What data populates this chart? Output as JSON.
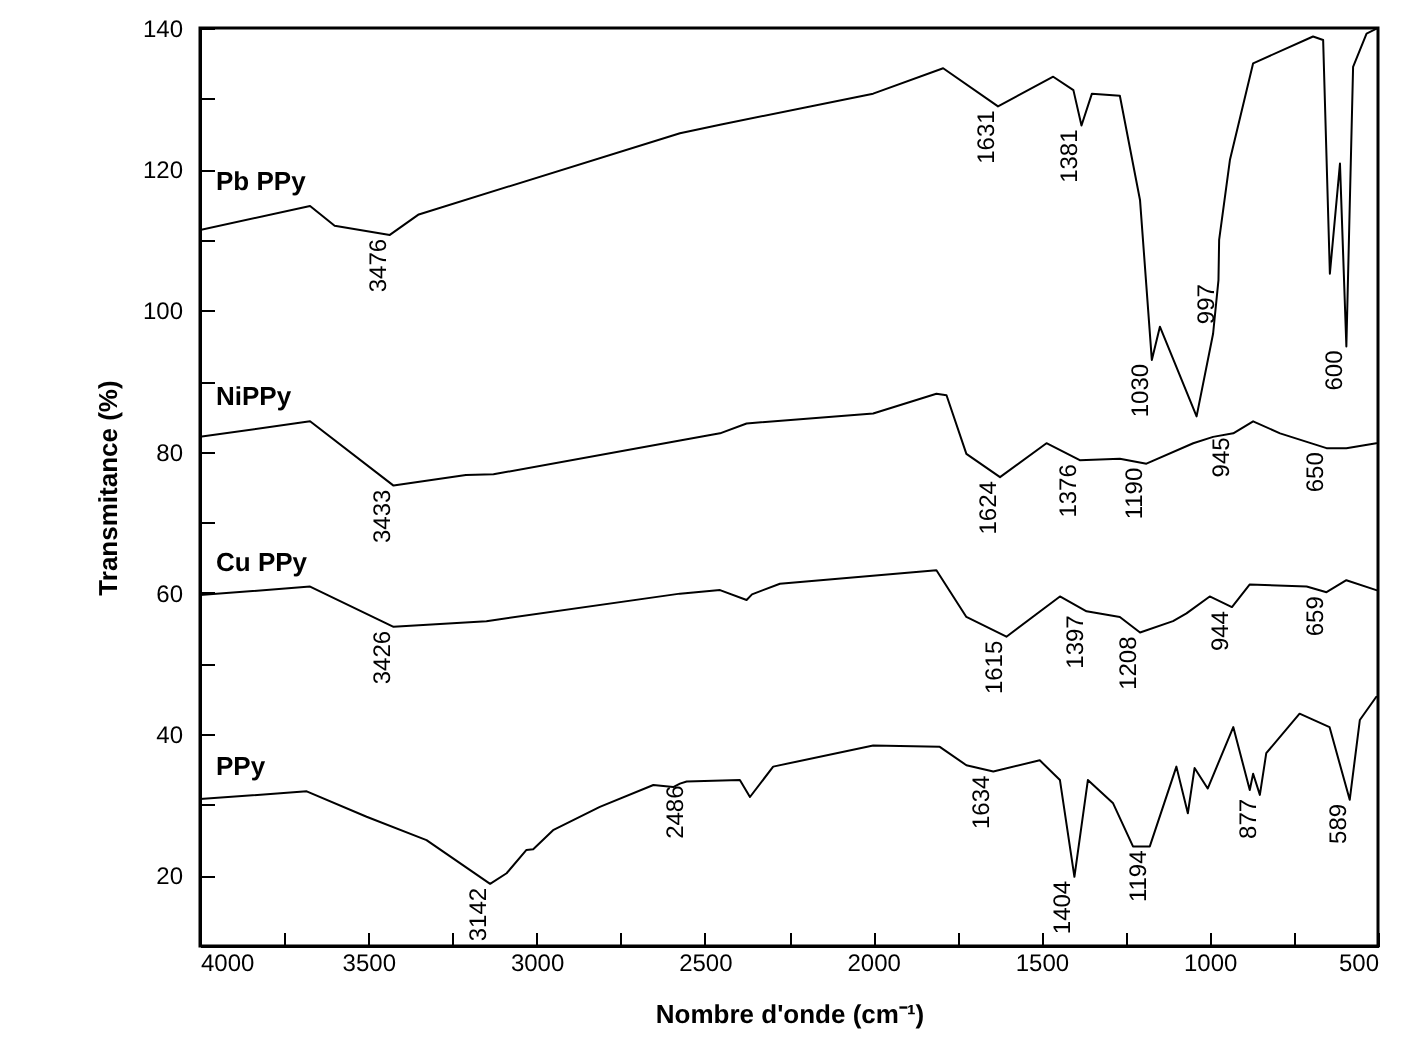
{
  "chart_data": {
    "type": "line",
    "xlabel": "Nombre d'onde (cm⁻¹)",
    "ylabel": "Transmitance (%)",
    "xlim": [
      4000,
      500
    ],
    "ylim": [
      10,
      140
    ],
    "xticks": [
      4000,
      {
        "value": 3750,
        "label": null
      },
      3500,
      {
        "value": 3250,
        "label": null
      },
      3000,
      {
        "value": 2750,
        "label": null
      },
      2500,
      {
        "value": 2250,
        "label": null
      },
      2000,
      {
        "value": 1750,
        "label": null
      },
      1500,
      {
        "value": 1250,
        "label": null
      },
      1000,
      {
        "value": 750,
        "label": null
      },
      500
    ],
    "yticks": [
      {
        "value": 10,
        "label": null
      },
      20,
      {
        "value": 30,
        "label": null
      },
      40,
      {
        "value": 50,
        "label": null
      },
      60,
      {
        "value": 70,
        "label": null
      },
      80,
      {
        "value": 90,
        "label": null
      },
      100,
      {
        "value": 110,
        "label": null
      },
      120,
      {
        "value": 130,
        "label": null
      },
      140
    ],
    "series": [
      {
        "name": "Pb PPy",
        "color": "#000000",
        "x": [
          4000,
          3673,
          3600,
          3436,
          3350,
          2574,
          2455,
          2000,
          1792,
          1629,
          1465,
          1405,
          1381,
          1350,
          1267,
          1207,
          1172,
          1148,
          1039,
          990,
          974,
          972,
          940,
          871,
          693,
          663,
          643,
          613,
          594,
          574,
          534,
          500
        ],
        "values": [
          111.4,
          114.8,
          112,
          110.7,
          113.6,
          125.1,
          126.3,
          130.7,
          134.3,
          128.9,
          133.1,
          131.2,
          126.2,
          130.7,
          130.4,
          115.6,
          93.0,
          97.7,
          85.0,
          96.7,
          104.3,
          110,
          121.3,
          135,
          138.8,
          138.3,
          105.2,
          120.8,
          94.9,
          134.5,
          139.2,
          140
        ]
      },
      {
        "name": "NiPPy",
        "color": "#000000",
        "x": [
          4000,
          3673,
          3425,
          3210,
          3128,
          2574,
          2455,
          2376,
          2000,
          1812,
          1782,
          1723,
          1623,
          1485,
          1386,
          1267,
          1188,
          1049,
          990,
          930,
          871,
          791,
          653,
          594,
          505
        ],
        "values": [
          82.1,
          84.3,
          75.2,
          76.7,
          76.8,
          81.6,
          82.6,
          84.0,
          85.4,
          88.2,
          88,
          79.7,
          76.4,
          81.2,
          78.8,
          79.0,
          78.3,
          81.2,
          82.1,
          82.6,
          84.3,
          82.6,
          80.5,
          80.5,
          81.2
        ]
      },
      {
        "name": "Cu PPy",
        "color": "#000000",
        "x": [
          4000,
          3673,
          3425,
          3149,
          2574,
          2455,
          2376,
          2360,
          2277,
          1812,
          1723,
          1604,
          1445,
          1366,
          1267,
          1207,
          1109,
          1069,
          1000,
          934,
          881,
          712,
          653,
          594,
          505
        ],
        "values": [
          59.7,
          60.9,
          55.2,
          56.0,
          59.9,
          60.4,
          59.0,
          59.8,
          61.3,
          63.2,
          56.6,
          53.8,
          59.5,
          57.4,
          56.6,
          54.4,
          56.0,
          57.1,
          59.5,
          58.0,
          61.2,
          60.9,
          60.1,
          61.8,
          60.4
        ]
      },
      {
        "name": "PPy",
        "color": "#000000",
        "x": [
          4000,
          3683,
          3505,
          3327,
          3138,
          3089,
          3030,
          3010,
          2951,
          2812,
          2653,
          2594,
          2574,
          2554,
          2396,
          2366,
          2297,
          2000,
          1802,
          1723,
          1643,
          1505,
          1445,
          1402,
          1362,
          1287,
          1228,
          1178,
          1099,
          1065,
          1045,
          1006,
          930,
          881,
          871,
          851,
          832,
          733,
          644,
          584,
          554,
          505
        ],
        "values": [
          30.8,
          31.9,
          28.3,
          25.0,
          18.8,
          20.3,
          23.6,
          23.7,
          26.4,
          29.7,
          32.8,
          32.5,
          33.0,
          33.3,
          33.5,
          31.1,
          35.4,
          38.4,
          38.2,
          35.6,
          34.7,
          36.3,
          33.5,
          19.8,
          33.5,
          30.2,
          24.1,
          24.1,
          35.4,
          28.8,
          35.2,
          32.3,
          41.0,
          32.1,
          34.4,
          31.4,
          37.3,
          42.9,
          41.0,
          30.7,
          42.0,
          45.3
        ]
      }
    ],
    "annotations": [
      {
        "text": "3476",
        "x": 3436,
        "y": 110.7
      },
      {
        "text": "1631",
        "x": 1629,
        "y": 128.9
      },
      {
        "text": "1381",
        "x": 1381,
        "y": 126.2
      },
      {
        "text": "1030",
        "x": 1172,
        "y": 93.0
      },
      {
        "text": "997",
        "x": 974,
        "y": 104.3
      },
      {
        "text": "600",
        "x": 594,
        "y": 94.9
      },
      {
        "text": "3433",
        "x": 3425,
        "y": 75.2
      },
      {
        "text": "1624",
        "x": 1623,
        "y": 76.4
      },
      {
        "text": "1376",
        "x": 1386,
        "y": 78.8
      },
      {
        "text": "1190",
        "x": 1188,
        "y": 78.3
      },
      {
        "text": "945",
        "x": 930,
        "y": 82.6
      },
      {
        "text": "650",
        "x": 653,
        "y": 80.5
      },
      {
        "text": "3426",
        "x": 3425,
        "y": 55.2
      },
      {
        "text": "1615",
        "x": 1604,
        "y": 53.8
      },
      {
        "text": "1397",
        "x": 1366,
        "y": 57.4
      },
      {
        "text": "1208",
        "x": 1207,
        "y": 54.4
      },
      {
        "text": "944",
        "x": 934,
        "y": 58.0
      },
      {
        "text": "659",
        "x": 653,
        "y": 60.1
      },
      {
        "text": "3142",
        "x": 3138,
        "y": 18.8
      },
      {
        "text": "2486",
        "x": 2554,
        "y": 33.3
      },
      {
        "text": "1634",
        "x": 1643,
        "y": 34.7
      },
      {
        "text": "1404",
        "x": 1402,
        "y": 19.8
      },
      {
        "text": "1194",
        "x": 1178,
        "y": 24.1
      },
      {
        "text": "877",
        "x": 851,
        "y": 31.4
      },
      {
        "text": "589",
        "x": 584,
        "y": 30.7
      }
    ]
  }
}
